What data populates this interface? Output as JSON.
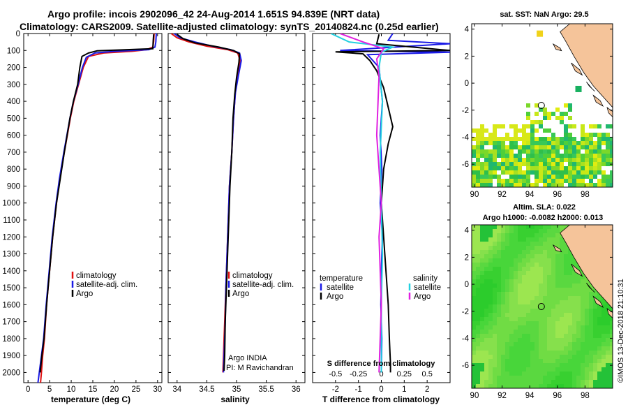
{
  "title": {
    "line1": "Argo profile: incois 2902096_42 24-Aug-2014 1.651S 94.839E (NRT data)",
    "line2": "Climatology: CARS2009. Satellite-adjusted climatology: synTS_20140824.nc (0.25d earlier)"
  },
  "colors": {
    "climatology": "#e01010",
    "satellite": "#1a1ae6",
    "argo": "#000000",
    "salinity_sat": "#22d0e0",
    "salinity_argo": "#e020e0",
    "land": "#f5c49a"
  },
  "chart_data": [
    {
      "type": "line",
      "xlabel": "temperature (deg C)",
      "ylabel": "",
      "xlim": [
        -1,
        31
      ],
      "ylim": [
        2060,
        0
      ],
      "xticks": [
        "0",
        "5",
        "10",
        "15",
        "20",
        "25",
        "30"
      ],
      "yticks": [
        "0",
        "100",
        "200",
        "300",
        "400",
        "500",
        "600",
        "700",
        "800",
        "900",
        "1000",
        "1100",
        "1200",
        "1300",
        "1400",
        "1500",
        "1600",
        "1700",
        "1800",
        "1900",
        "2000"
      ],
      "legend": [
        {
          "name": "climatology",
          "color": "#e01010"
        },
        {
          "name": "satellite-adj. clim.",
          "color": "#1a1ae6"
        },
        {
          "name": "Argo",
          "color": "#000000"
        }
      ],
      "series": [
        {
          "name": "climatology",
          "color": "#e01010",
          "x": [
            29.2,
            29.1,
            28.9,
            27.5,
            24.0,
            17.5,
            14.0,
            12.8,
            11.7,
            10.6,
            9.8,
            8.4,
            7.4,
            6.6,
            5.7,
            5.0,
            4.3,
            3.8,
            3.4,
            3.1,
            2.9
          ],
          "y": [
            0,
            50,
            80,
            95,
            105,
            115,
            135,
            200,
            300,
            400,
            500,
            700,
            850,
            1000,
            1200,
            1400,
            1600,
            1800,
            1900,
            2000,
            2060
          ]
        },
        {
          "name": "satellite-adj. clim.",
          "color": "#1a1ae6",
          "x": [
            29.7,
            29.6,
            29.4,
            28.0,
            20.0,
            15.5,
            13.5,
            12.6,
            11.6,
            10.5,
            9.7,
            8.3,
            7.3,
            6.5,
            5.6,
            4.9,
            4.2,
            3.6,
            3.1,
            2.6,
            2.3
          ],
          "y": [
            0,
            50,
            80,
            95,
            105,
            115,
            140,
            200,
            300,
            400,
            500,
            700,
            850,
            1000,
            1200,
            1400,
            1600,
            1800,
            1900,
            2000,
            2060
          ]
        },
        {
          "name": "Argo",
          "color": "#000000",
          "x": [
            29.1,
            29.0,
            28.9,
            16.0,
            14.0,
            12.5,
            12.0,
            11.5,
            10.5,
            9.7,
            8.4,
            7.5,
            6.6,
            5.7,
            5.0,
            4.3,
            3.7,
            3.2,
            2.8
          ],
          "y": [
            5,
            40,
            90,
            102,
            115,
            135,
            200,
            300,
            400,
            500,
            700,
            850,
            1000,
            1200,
            1400,
            1600,
            1800,
            1900,
            2000
          ]
        }
      ]
    },
    {
      "type": "line",
      "xlabel": "salinity",
      "xlim": [
        33.85,
        36.15
      ],
      "ylim": [
        2060,
        0
      ],
      "xticks": [
        "34",
        "34.5",
        "35",
        "35.5",
        "36"
      ],
      "legend": [
        {
          "name": "climatology",
          "color": "#e01010"
        },
        {
          "name": "satellite-adj. clim.",
          "color": "#1a1ae6"
        },
        {
          "name": "Argo",
          "color": "#000000"
        }
      ],
      "annotations": [
        "Argo INDIA",
        "PI: M Ravichandran"
      ],
      "series": [
        {
          "name": "climatology",
          "color": "#e01010",
          "x": [
            33.9,
            34.0,
            34.2,
            34.5,
            34.85,
            35.02,
            35.06,
            35.02,
            34.98,
            34.95,
            34.92,
            34.88,
            34.86,
            34.84,
            34.82,
            34.8,
            34.79,
            34.78,
            34.77
          ],
          "y": [
            0,
            25,
            50,
            75,
            95,
            115,
            160,
            250,
            350,
            500,
            700,
            900,
            1100,
            1300,
            1500,
            1700,
            1800,
            1900,
            2000
          ]
        },
        {
          "name": "satellite-adj. clim.",
          "color": "#1a1ae6",
          "x": [
            33.95,
            34.05,
            34.3,
            34.6,
            34.9,
            35.05,
            35.08,
            35.03,
            34.98,
            34.95,
            34.92,
            34.88,
            34.86,
            34.84,
            34.82,
            34.81,
            34.8,
            34.79,
            34.78
          ],
          "y": [
            0,
            25,
            50,
            75,
            95,
            115,
            160,
            250,
            350,
            500,
            700,
            900,
            1100,
            1300,
            1500,
            1700,
            1800,
            1900,
            2000
          ]
        },
        {
          "name": "Argo",
          "color": "#000000",
          "x": [
            34.0,
            34.1,
            34.3,
            34.7,
            34.95,
            35.05,
            35.04,
            35.0,
            34.97,
            34.94,
            34.92,
            34.89,
            34.87,
            34.85,
            34.83,
            34.81,
            34.8,
            34.79
          ],
          "y": [
            5,
            30,
            55,
            80,
            100,
            120,
            170,
            260,
            360,
            500,
            700,
            900,
            1100,
            1300,
            1500,
            1700,
            1900,
            1990
          ]
        }
      ]
    },
    {
      "type": "line",
      "xlabel": "T difference from climatology",
      "xlabel2": "S difference from climatology",
      "xlim": [
        -3,
        3
      ],
      "ylim": [
        2060,
        0
      ],
      "xticks": [
        "-2",
        "-1",
        "0",
        "1",
        "2"
      ],
      "xticks2": [
        "-0.5",
        "-0.25",
        "0",
        "0.25",
        "0.5"
      ],
      "legend_left_title": "temperature",
      "legend_right_title": "salinity",
      "legend_left": [
        {
          "name": "satellite",
          "color": "#1a1ae6"
        },
        {
          "name": "Argo",
          "color": "#000000"
        }
      ],
      "legend_right": [
        {
          "name": "satellite",
          "color": "#22d0e0"
        },
        {
          "name": "Argo",
          "color": "#e020e0"
        }
      ],
      "series": [
        {
          "name": "T satellite",
          "color": "#1a1ae6",
          "x": [
            0.5,
            0.3,
            3.0,
            -1.8,
            3.0,
            -0.6,
            -0.1,
            0.05,
            -0.05,
            0.02,
            -0.05,
            0.05,
            0.0,
            -0.02,
            0.02,
            0.0
          ],
          "y": [
            0,
            40,
            60,
            100,
            110,
            125,
            200,
            400,
            600,
            800,
            1000,
            1200,
            1400,
            1600,
            1800,
            2000
          ]
        },
        {
          "name": "T Argo",
          "color": "#000000",
          "x": [
            -0.1,
            -0.2,
            3.0,
            -2.0,
            -0.8,
            -0.5,
            -0.2,
            0.1,
            0.5,
            0.3,
            0.1,
            0.0,
            0.1,
            0.2,
            0.3,
            0.35,
            0.4,
            0.4
          ],
          "y": [
            5,
            60,
            100,
            108,
            120,
            160,
            220,
            320,
            550,
            650,
            800,
            1000,
            1200,
            1400,
            1600,
            1800,
            1950,
            2000
          ]
        },
        {
          "name": "S satellite",
          "color": "#22d0e0",
          "x": [
            -2.2,
            -1.4,
            0.5,
            0.0,
            -0.1,
            0.05,
            -0.05,
            0.0,
            0.05,
            0.0,
            0.0
          ],
          "y": [
            0,
            50,
            80,
            110,
            200,
            400,
            700,
            1000,
            1300,
            1600,
            2000
          ]
        },
        {
          "name": "S Argo",
          "color": "#e020e0",
          "x": [
            -1.8,
            -0.8,
            0.1,
            -0.2,
            -0.1,
            -0.2,
            -0.1,
            0.0,
            -0.1,
            0.0,
            -0.1
          ],
          "y": [
            0,
            50,
            90,
            150,
            250,
            600,
            800,
            1000,
            1200,
            1600,
            2000
          ]
        }
      ]
    },
    {
      "type": "heatmap",
      "title": "sat. SST: NaN Argo: 29.5",
      "xlim": [
        89.8,
        100
      ],
      "ylim": [
        -7.7,
        4.4
      ],
      "xticks": [
        "90",
        "92",
        "94",
        "96",
        "98"
      ],
      "yticks": [
        "4",
        "2",
        "0",
        "-2",
        "-4",
        "-6"
      ],
      "argo_position": {
        "lon": 94.84,
        "lat": -1.65
      }
    },
    {
      "type": "heatmap",
      "title": "Altim. SLA: 0.022",
      "subtitle": "Argo h1000: -0.0082 h2000: 0.013",
      "xlim": [
        89.8,
        100
      ],
      "ylim": [
        -7.7,
        4.4
      ],
      "xticks": [
        "90",
        "92",
        "94",
        "96",
        "98"
      ],
      "yticks": [
        "4",
        "2",
        "0",
        "-2",
        "-4",
        "-6"
      ],
      "argo_position": {
        "lon": 94.84,
        "lat": -1.65
      }
    }
  ],
  "credit": "©IMOS 13-Dec-2018 21:10:31"
}
